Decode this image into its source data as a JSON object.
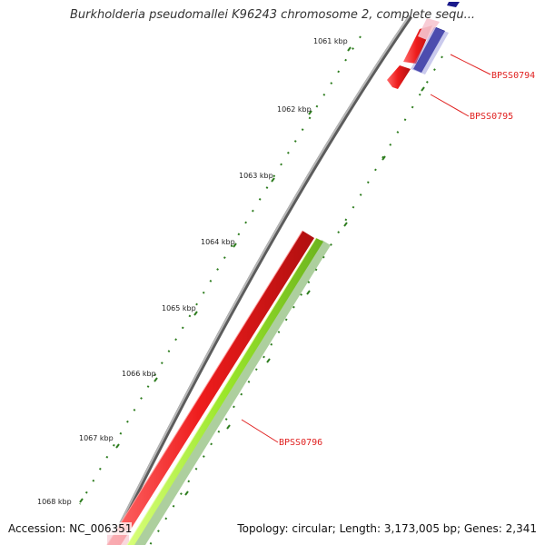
{
  "title": "Burkholderia pseudomallei K96243 chromosome 2, complete sequ...",
  "accession": {
    "label": "Accession:",
    "value": "NC_006351"
  },
  "topology_summary": "Topology: circular; Length: 3,173,005 bp; Genes: 2,341",
  "scale_ticks": [
    "1061 kbp",
    "1062 kbp",
    "1063 kbp",
    "1064 kbp",
    "1065 kbp",
    "1066 kbp",
    "1067 kbp",
    "1068 kbp"
  ],
  "genes": [
    {
      "name": "BPSS0794"
    },
    {
      "name": "BPSS0795"
    },
    {
      "name": "BPSS0796"
    }
  ],
  "colors": {
    "backbone": "#8a8a8a",
    "forward_cds": "#ee1c1c",
    "reverse_cds": "#1a1a8c",
    "gc_track": "#9ae62a",
    "gc_track_shade": "#6aa84f",
    "tick_dots": "#2e7d1f",
    "label_red": "#e0201f"
  }
}
